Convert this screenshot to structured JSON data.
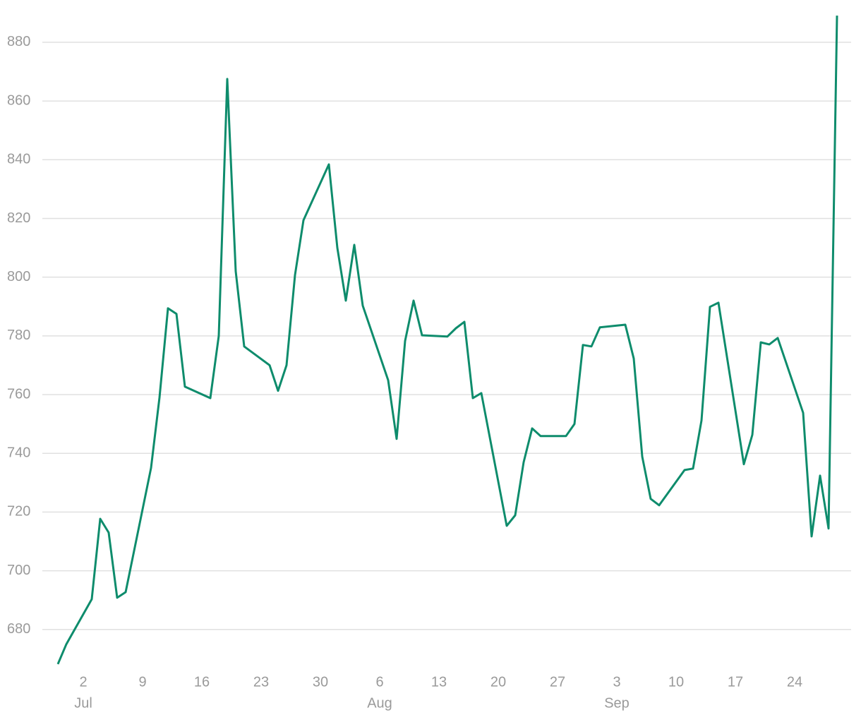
{
  "chart_data": {
    "type": "line",
    "color": "#0e8c6c",
    "grid": true,
    "x": [
      "06-29",
      "06-30",
      "07-03",
      "07-04",
      "07-05",
      "07-06",
      "07-07",
      "07-10",
      "07-11",
      "07-12",
      "07-13",
      "07-14",
      "07-17",
      "07-18",
      "07-19",
      "07-20",
      "07-21",
      "07-24",
      "07-25",
      "07-26",
      "07-27",
      "07-28",
      "07-31",
      "08-01",
      "08-02",
      "08-03",
      "08-04",
      "08-07",
      "08-08",
      "08-09",
      "08-10",
      "08-11",
      "08-14",
      "08-15",
      "08-16",
      "08-17",
      "08-18",
      "08-21",
      "08-22",
      "08-23",
      "08-24",
      "08-25",
      "08-28",
      "08-29",
      "08-30",
      "08-31",
      "09-01",
      "09-04",
      "09-05",
      "09-06",
      "09-07",
      "09-08",
      "09-11",
      "09-12",
      "09-13",
      "09-14",
      "09-15",
      "09-18",
      "09-19",
      "09-20",
      "09-21",
      "09-22",
      "09-25",
      "09-26",
      "09-27",
      "09-28",
      "09-29"
    ],
    "values": [
      668.2,
      675,
      690.3,
      717.7,
      713,
      690.8,
      692.7,
      735,
      759,
      789.4,
      787.5,
      762.7,
      758.8,
      780,
      867.5,
      802,
      776.4,
      770,
      761.3,
      770,
      800.7,
      819.4,
      838.4,
      810,
      792,
      811,
      790.3,
      764.9,
      744.9,
      778.3,
      792,
      780.2,
      779.8,
      782.6,
      784.8,
      758.8,
      760.5,
      715.3,
      718.9,
      737,
      748.5,
      745.9,
      745.9,
      750,
      776.9,
      776.4,
      782.9,
      783.8,
      772.3,
      738.9,
      724.5,
      722.3,
      734.3,
      734.8,
      751.2,
      789.9,
      791.3,
      736.3,
      746.3,
      777.8,
      777.1,
      779.3,
      753.8,
      711.7,
      732.4,
      714.4,
      889.1
    ],
    "xlim": [
      "06-28",
      "09-30"
    ],
    "xticks": [
      {
        "value": "07-02",
        "label": "2"
      },
      {
        "value": "07-09",
        "label": "9"
      },
      {
        "value": "07-16",
        "label": "16"
      },
      {
        "value": "07-23",
        "label": "23"
      },
      {
        "value": "07-30",
        "label": "30"
      },
      {
        "value": "08-06",
        "label": "6"
      },
      {
        "value": "08-13",
        "label": "13"
      },
      {
        "value": "08-20",
        "label": "20"
      },
      {
        "value": "08-27",
        "label": "27"
      },
      {
        "value": "09-03",
        "label": "3"
      },
      {
        "value": "09-10",
        "label": "10"
      },
      {
        "value": "09-17",
        "label": "17"
      },
      {
        "value": "09-24",
        "label": "24"
      }
    ],
    "xtick_months": [
      {
        "value": "07-02",
        "label": "Jul"
      },
      {
        "value": "08-06",
        "label": "Aug"
      },
      {
        "value": "09-03",
        "label": "Sep"
      }
    ],
    "ylim": [
      666,
      892
    ],
    "yticks": [
      680,
      700,
      720,
      740,
      760,
      780,
      800,
      820,
      840,
      860,
      880
    ]
  }
}
